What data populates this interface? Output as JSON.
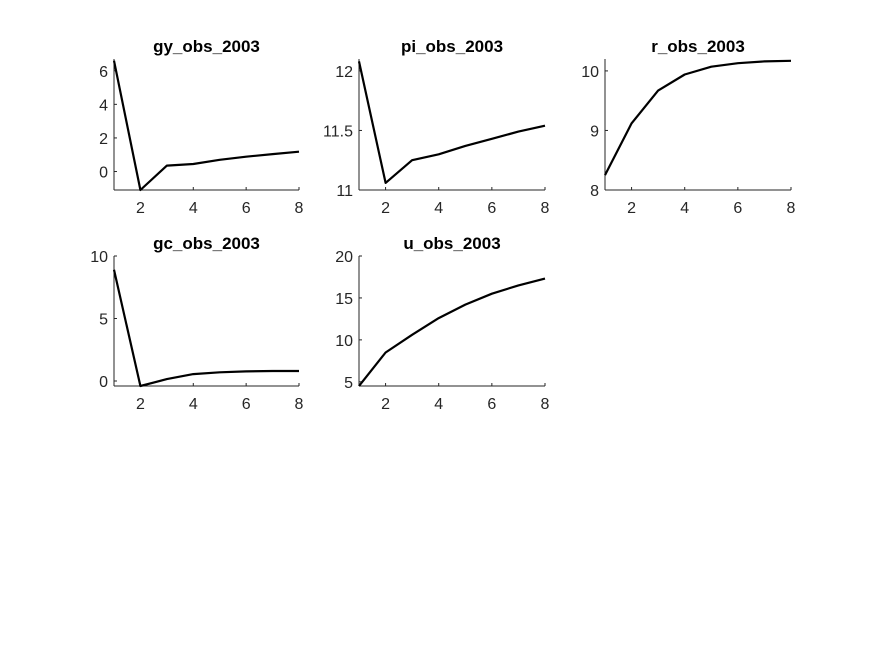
{
  "figure": {
    "background": "#ffffff",
    "axis_color": "#262626",
    "line_color": "#000000"
  },
  "chart_data": [
    {
      "type": "line",
      "title": "gy_obs_2003",
      "x": [
        1,
        2,
        3,
        4,
        5,
        6,
        7,
        8
      ],
      "series": [
        {
          "values": [
            6.6,
            -1.1,
            0.35,
            0.45,
            0.7,
            0.88,
            1.04,
            1.18
          ]
        }
      ],
      "xlim": [
        1,
        8
      ],
      "ylim": [
        -1.1,
        6.7
      ],
      "xticks": [
        2,
        4,
        6,
        8
      ],
      "xtick_labels": [
        "2",
        "4",
        "6",
        "8"
      ],
      "yticks": [
        0,
        2,
        4,
        6
      ],
      "ytick_labels": [
        "0",
        "2",
        "4",
        "6"
      ],
      "xlabel": "",
      "ylabel": ""
    },
    {
      "type": "line",
      "title": "pi_obs_2003",
      "x": [
        1,
        2,
        3,
        4,
        5,
        6,
        7,
        8
      ],
      "series": [
        {
          "values": [
            12.08,
            11.06,
            11.25,
            11.3,
            11.37,
            11.43,
            11.49,
            11.54
          ]
        }
      ],
      "xlim": [
        1,
        8
      ],
      "ylim": [
        11,
        12.1
      ],
      "xticks": [
        2,
        4,
        6,
        8
      ],
      "xtick_labels": [
        "2",
        "4",
        "6",
        "8"
      ],
      "yticks": [
        11,
        11.5,
        12
      ],
      "ytick_labels": [
        "11",
        "11.5",
        "12"
      ],
      "xlabel": "",
      "ylabel": ""
    },
    {
      "type": "line",
      "title": "r_obs_2003",
      "x": [
        1,
        2,
        3,
        4,
        5,
        6,
        7,
        8
      ],
      "series": [
        {
          "values": [
            8.25,
            9.12,
            9.67,
            9.94,
            10.07,
            10.13,
            10.16,
            10.17
          ]
        }
      ],
      "xlim": [
        1,
        8
      ],
      "ylim": [
        8,
        10.2
      ],
      "xticks": [
        2,
        4,
        6,
        8
      ],
      "xtick_labels": [
        "2",
        "4",
        "6",
        "8"
      ],
      "yticks": [
        8,
        9,
        10
      ],
      "ytick_labels": [
        "8",
        "9",
        "10"
      ],
      "xlabel": "",
      "ylabel": ""
    },
    {
      "type": "line",
      "title": "gc_obs_2003",
      "x": [
        1,
        2,
        3,
        4,
        5,
        6,
        7,
        8
      ],
      "series": [
        {
          "values": [
            8.9,
            -0.4,
            0.15,
            0.55,
            0.7,
            0.77,
            0.8,
            0.8
          ]
        }
      ],
      "xlim": [
        1,
        8
      ],
      "ylim": [
        -0.4,
        10
      ],
      "xticks": [
        2,
        4,
        6,
        8
      ],
      "xtick_labels": [
        "2",
        "4",
        "6",
        "8"
      ],
      "yticks": [
        0,
        5,
        10
      ],
      "ytick_labels": [
        "0",
        "5",
        "10"
      ],
      "xlabel": "",
      "ylabel": ""
    },
    {
      "type": "line",
      "title": "u_obs_2003",
      "x": [
        1,
        2,
        3,
        4,
        5,
        6,
        7,
        8
      ],
      "series": [
        {
          "values": [
            4.5,
            8.5,
            10.6,
            12.6,
            14.2,
            15.5,
            16.5,
            17.3
          ]
        }
      ],
      "xlim": [
        1,
        8
      ],
      "ylim": [
        4.5,
        20
      ],
      "xticks": [
        2,
        4,
        6,
        8
      ],
      "xtick_labels": [
        "2",
        "4",
        "6",
        "8"
      ],
      "yticks": [
        5,
        10,
        15,
        20
      ],
      "ytick_labels": [
        "5",
        "10",
        "15",
        "20"
      ],
      "xlabel": "",
      "ylabel": ""
    }
  ]
}
